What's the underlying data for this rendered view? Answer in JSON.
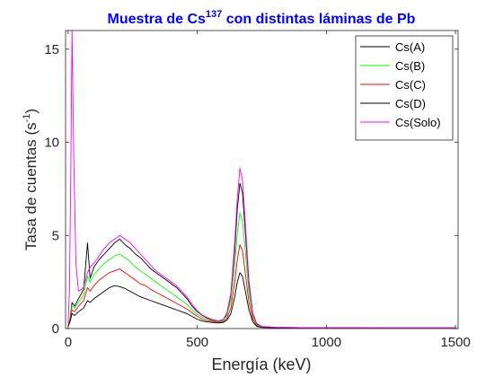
{
  "chart_data": {
    "type": "line",
    "title": {
      "prefix": "Muestra de Cs",
      "superscript": "137",
      "suffix": " con distintas láminas de Pb",
      "color": "#0000ff"
    },
    "xlabel": "Energía (keV)",
    "ylabel": {
      "prefix": "Tasa de cuentas (s",
      "superscript": "-1",
      "suffix": ")"
    },
    "xlim": [
      -10,
      1510
    ],
    "ylim": [
      0,
      16
    ],
    "xticks": [
      0,
      500,
      1000,
      1500
    ],
    "yticks": [
      0,
      5,
      10,
      15
    ],
    "grid": false,
    "legend_position": "top-right",
    "series": [
      {
        "name": "Cs(A)",
        "color": "#000000",
        "x": [
          0,
          8,
          15,
          25,
          40,
          60,
          75,
          85,
          100,
          120,
          140,
          160,
          180,
          200,
          220,
          240,
          260,
          280,
          300,
          320,
          340,
          360,
          380,
          400,
          420,
          440,
          460,
          480,
          500,
          520,
          540,
          560,
          580,
          600,
          615,
          630,
          645,
          655,
          665,
          675,
          685,
          700,
          715,
          730,
          750,
          800,
          900,
          1000,
          1100,
          1200,
          1300,
          1400,
          1500
        ],
        "y": [
          0.1,
          0.6,
          1.4,
          1.2,
          1.6,
          2.1,
          4.6,
          2.7,
          3.3,
          3.7,
          4.0,
          4.3,
          4.6,
          4.8,
          4.5,
          4.3,
          4.0,
          3.8,
          3.5,
          3.2,
          3.0,
          2.8,
          2.6,
          2.4,
          2.2,
          1.9,
          1.6,
          1.2,
          0.9,
          0.7,
          0.55,
          0.45,
          0.4,
          0.45,
          0.8,
          1.8,
          4.2,
          6.4,
          7.8,
          7.3,
          5.4,
          2.4,
          0.8,
          0.25,
          0.1,
          0.06,
          0.05,
          0.04,
          0.04,
          0.03,
          0.03,
          0.03,
          0.03
        ]
      },
      {
        "name": "Cs(B)",
        "color": "#00ff00",
        "x": [
          0,
          8,
          15,
          25,
          40,
          60,
          75,
          85,
          100,
          120,
          140,
          160,
          180,
          200,
          220,
          240,
          260,
          280,
          300,
          320,
          340,
          360,
          380,
          400,
          420,
          440,
          460,
          480,
          500,
          520,
          540,
          560,
          580,
          600,
          615,
          630,
          645,
          655,
          665,
          675,
          685,
          700,
          715,
          730,
          750,
          800,
          900,
          1000,
          1100,
          1200,
          1300,
          1400,
          1500
        ],
        "y": [
          0.1,
          0.6,
          1.2,
          1.1,
          1.4,
          1.8,
          2.8,
          2.5,
          2.9,
          3.2,
          3.5,
          3.7,
          3.9,
          4.0,
          3.8,
          3.6,
          3.3,
          3.1,
          2.9,
          2.7,
          2.5,
          2.3,
          2.1,
          1.9,
          1.7,
          1.5,
          1.3,
          1.0,
          0.75,
          0.6,
          0.5,
          0.42,
          0.38,
          0.42,
          0.7,
          1.5,
          3.4,
          5.1,
          6.2,
          5.8,
          4.3,
          1.9,
          0.65,
          0.2,
          0.08,
          0.05,
          0.04,
          0.04,
          0.03,
          0.03,
          0.03,
          0.03,
          0.03
        ]
      },
      {
        "name": "Cs(C)",
        "color": "#ff0000",
        "x": [
          0,
          8,
          15,
          25,
          40,
          60,
          75,
          85,
          100,
          120,
          140,
          160,
          180,
          200,
          220,
          240,
          260,
          280,
          300,
          320,
          340,
          360,
          380,
          400,
          420,
          440,
          460,
          480,
          500,
          520,
          540,
          560,
          580,
          600,
          615,
          630,
          645,
          655,
          665,
          675,
          685,
          700,
          715,
          730,
          750,
          800,
          900,
          1000,
          1100,
          1200,
          1300,
          1400,
          1500
        ],
        "y": [
          0.1,
          0.5,
          1.0,
          0.9,
          1.2,
          1.5,
          2.2,
          2.0,
          2.3,
          2.6,
          2.8,
          3.0,
          3.1,
          3.2,
          3.0,
          2.8,
          2.6,
          2.4,
          2.3,
          2.1,
          1.95,
          1.8,
          1.65,
          1.5,
          1.35,
          1.2,
          1.05,
          0.85,
          0.65,
          0.5,
          0.42,
          0.38,
          0.34,
          0.36,
          0.55,
          1.1,
          2.5,
          3.7,
          4.5,
          4.2,
          3.1,
          1.4,
          0.5,
          0.15,
          0.07,
          0.05,
          0.04,
          0.03,
          0.03,
          0.03,
          0.03,
          0.03,
          0.03
        ]
      },
      {
        "name": "Cs(D)",
        "color": "#000000",
        "x": [
          0,
          8,
          15,
          25,
          40,
          60,
          75,
          85,
          100,
          120,
          140,
          160,
          180,
          200,
          220,
          240,
          260,
          280,
          300,
          320,
          340,
          360,
          380,
          400,
          420,
          440,
          460,
          480,
          500,
          520,
          540,
          560,
          580,
          600,
          615,
          630,
          645,
          655,
          665,
          675,
          685,
          700,
          715,
          730,
          750,
          800,
          900,
          1000,
          1100,
          1200,
          1300,
          1400,
          1500
        ],
        "y": [
          0.1,
          0.4,
          0.8,
          0.7,
          0.9,
          1.1,
          1.5,
          1.4,
          1.6,
          1.8,
          2.0,
          2.2,
          2.3,
          2.25,
          2.15,
          2.0,
          1.85,
          1.7,
          1.6,
          1.5,
          1.4,
          1.3,
          1.2,
          1.1,
          1.0,
          0.9,
          0.8,
          0.65,
          0.5,
          0.4,
          0.35,
          0.32,
          0.3,
          0.32,
          0.45,
          0.8,
          1.7,
          2.5,
          3.0,
          2.8,
          2.1,
          1.0,
          0.35,
          0.12,
          0.06,
          0.04,
          0.03,
          0.03,
          0.03,
          0.03,
          0.03,
          0.03,
          0.03
        ]
      },
      {
        "name": "Cs(Solo)",
        "color": "#ff00ff",
        "x": [
          0,
          5,
          10,
          15,
          22,
          30,
          40,
          60,
          75,
          85,
          100,
          120,
          140,
          160,
          180,
          200,
          220,
          240,
          260,
          280,
          300,
          320,
          340,
          360,
          380,
          400,
          420,
          440,
          460,
          480,
          500,
          520,
          540,
          560,
          580,
          600,
          615,
          630,
          645,
          655,
          665,
          675,
          685,
          700,
          715,
          730,
          750,
          800,
          900,
          1000,
          1100,
          1200,
          1300,
          1400,
          1500
        ],
        "y": [
          0.3,
          2.0,
          8.0,
          16.0,
          9.0,
          3.5,
          2.0,
          2.2,
          3.0,
          3.3,
          3.5,
          3.9,
          4.3,
          4.6,
          4.8,
          5.0,
          4.8,
          4.6,
          4.3,
          4.0,
          3.7,
          3.4,
          3.1,
          2.9,
          2.7,
          2.5,
          2.3,
          2.0,
          1.7,
          1.3,
          0.95,
          0.72,
          0.58,
          0.48,
          0.42,
          0.48,
          0.85,
          1.9,
          4.6,
          7.0,
          8.6,
          8.0,
          5.9,
          2.6,
          0.85,
          0.28,
          0.11,
          0.07,
          0.05,
          0.04,
          0.04,
          0.03,
          0.03,
          0.03,
          0.03
        ]
      }
    ]
  }
}
